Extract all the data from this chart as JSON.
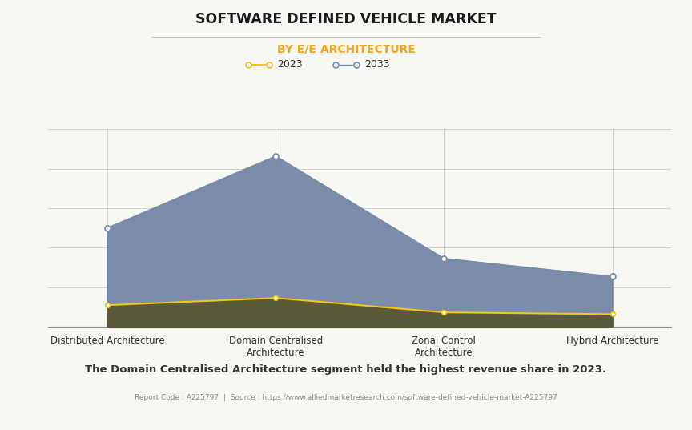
{
  "title": "SOFTWARE DEFINED VEHICLE MARKET",
  "subtitle": "BY E/E ARCHITECTURE",
  "title_color": "#1a1a1a",
  "subtitle_color": "#f5a623",
  "background_color": "#f7f7f3",
  "plot_bg_color": "#f7f7f3",
  "categories": [
    "Distributed Architecture",
    "Domain Centralised\nArchitecture",
    "Zonal Control\nArchitecture",
    "Hybrid Architecture"
  ],
  "x_positions": [
    0,
    1,
    2,
    3
  ],
  "series_2033": [
    55,
    95,
    38,
    28
  ],
  "series_2023": [
    12,
    16,
    8,
    7
  ],
  "color_2033": "#6b7fa3",
  "color_2023": "#5a5a3a",
  "line_color_2033": "#7a8fad",
  "line_color_2023": "#f5c518",
  "fill_alpha_2033": 0.88,
  "fill_alpha_2023": 1.0,
  "legend_2023": "2023",
  "legend_2033": "2033",
  "footer_bold": "The Domain Centralised Architecture segment held the highest revenue share in 2023.",
  "footer_small": "Report Code : A225797  |  Source : https://www.alliedmarketresearch.com/software-defined-vehicle-market-A225797",
  "ylim": [
    0,
    110
  ],
  "grid_color": "#cccccc",
  "separator_color": "#bbbbbb"
}
